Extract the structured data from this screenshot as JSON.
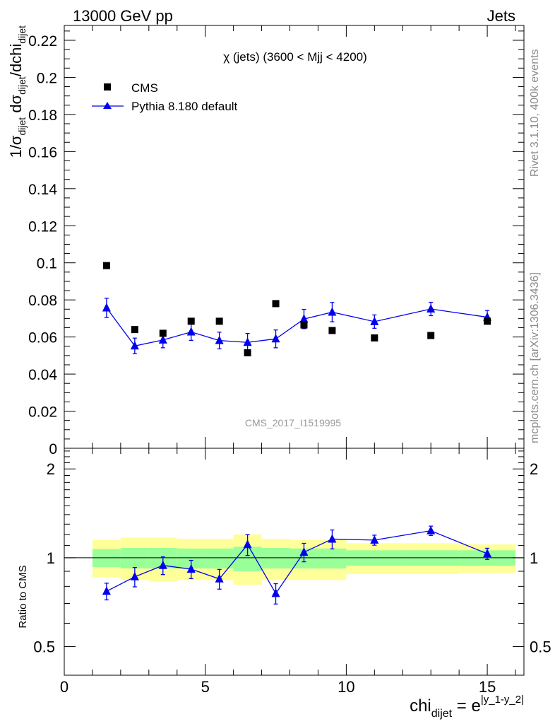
{
  "header": {
    "left": "13000 GeV pp",
    "right": "Jets"
  },
  "side_labels": {
    "rivet": "Rivet 3.1.10,  400k events",
    "mcplots": "mcplots.cern.ch [arXiv:1306.3436]"
  },
  "chart_data": [
    {
      "type": "scatter",
      "title": "χ (jets) (3600 < Mjj < 4200)",
      "watermark": "CMS_2017_I1519995",
      "ylabel": {
        "main": "1/σ",
        "sub1": "dijet",
        "mid": " dσ",
        "sub2": "dijet",
        "tail": "/dchi",
        "sub3": "dijet"
      },
      "xlim": [
        0,
        16.3
      ],
      "ylim": [
        0,
        0.228
      ],
      "yticks": [
        {
          "v": 0,
          "label": "0"
        },
        {
          "v": 0.02,
          "label": "0.02"
        },
        {
          "v": 0.04,
          "label": "0.04"
        },
        {
          "v": 0.06,
          "label": "0.06"
        },
        {
          "v": 0.08,
          "label": "0.08"
        },
        {
          "v": 0.1,
          "label": "0.1"
        },
        {
          "v": 0.12,
          "label": "0.12"
        },
        {
          "v": 0.14,
          "label": "0.14"
        },
        {
          "v": 0.16,
          "label": "0.16"
        },
        {
          "v": 0.18,
          "label": "0.18"
        },
        {
          "v": 0.2,
          "label": "0.2"
        },
        {
          "v": 0.22,
          "label": "0.22"
        }
      ],
      "legend": [
        {
          "name": "CMS",
          "marker": "square"
        },
        {
          "name": "Pythia 8.180 default",
          "marker": "triangle"
        }
      ],
      "series": [
        {
          "name": "CMS",
          "x": [
            1.5,
            2.5,
            3.5,
            4.5,
            5.5,
            6.5,
            7.5,
            8.5,
            9.5,
            11,
            13,
            15
          ],
          "y": [
            0.0985,
            0.064,
            0.062,
            0.0685,
            0.0685,
            0.0515,
            0.078,
            0.0665,
            0.0635,
            0.0595,
            0.0608,
            0.0685
          ]
        },
        {
          "name": "Pythia 8.180 default",
          "x": [
            1.5,
            2.5,
            3.5,
            4.5,
            5.5,
            6.5,
            7.5,
            8.5,
            9.5,
            11,
            13,
            15
          ],
          "y": [
            0.0757,
            0.0552,
            0.0584,
            0.0627,
            0.0581,
            0.0571,
            0.059,
            0.0697,
            0.0734,
            0.0683,
            0.0751,
            0.0707
          ],
          "err": [
            0.0052,
            0.0042,
            0.0042,
            0.0045,
            0.0045,
            0.0048,
            0.0048,
            0.0052,
            0.0052,
            0.0036,
            0.0036,
            0.0036
          ]
        }
      ]
    },
    {
      "type": "scatter",
      "ylabel": "Ratio to CMS",
      "xlabel": {
        "main": "chi",
        "sub": "dijet",
        "eq": " = e",
        "sup": "|y_1-y_2|"
      },
      "xlim": [
        0,
        16.3
      ],
      "ylim": [
        0.4,
        2.35
      ],
      "ylog": true,
      "yticks": [
        {
          "v": 0.5,
          "label": "0.5"
        },
        {
          "v": 1,
          "label": "1"
        },
        {
          "v": 2,
          "label": "2"
        }
      ],
      "xticks": [
        {
          "v": 0,
          "label": "0"
        },
        {
          "v": 5,
          "label": "5"
        },
        {
          "v": 10,
          "label": "10"
        },
        {
          "v": 15,
          "label": "15"
        }
      ],
      "bands": [
        {
          "x0": 1,
          "x1": 2,
          "in_lo": 0.93,
          "in_hi": 1.07,
          "out_lo": 0.86,
          "out_hi": 1.15
        },
        {
          "x0": 2,
          "x1": 3,
          "in_lo": 0.92,
          "in_hi": 1.08,
          "out_lo": 0.84,
          "out_hi": 1.17
        },
        {
          "x0": 3,
          "x1": 4,
          "in_lo": 0.92,
          "in_hi": 1.08,
          "out_lo": 0.83,
          "out_hi": 1.17
        },
        {
          "x0": 4,
          "x1": 5,
          "in_lo": 0.92,
          "in_hi": 1.075,
          "out_lo": 0.84,
          "out_hi": 1.16
        },
        {
          "x0": 5,
          "x1": 6,
          "in_lo": 0.92,
          "in_hi": 1.075,
          "out_lo": 0.84,
          "out_hi": 1.16
        },
        {
          "x0": 6,
          "x1": 7,
          "in_lo": 0.9,
          "in_hi": 1.09,
          "out_lo": 0.81,
          "out_hi": 1.2
        },
        {
          "x0": 7,
          "x1": 8,
          "in_lo": 0.92,
          "in_hi": 1.08,
          "out_lo": 0.84,
          "out_hi": 1.16
        },
        {
          "x0": 8,
          "x1": 10,
          "in_lo": 0.92,
          "in_hi": 1.075,
          "out_lo": 0.84,
          "out_hi": 1.15
        },
        {
          "x0": 10,
          "x1": 12,
          "in_lo": 0.94,
          "in_hi": 1.06,
          "out_lo": 0.88,
          "out_hi": 1.12
        },
        {
          "x0": 12,
          "x1": 14,
          "in_lo": 0.94,
          "in_hi": 1.06,
          "out_lo": 0.88,
          "out_hi": 1.12
        },
        {
          "x0": 14,
          "x1": 16,
          "in_lo": 0.94,
          "in_hi": 1.06,
          "out_lo": 0.89,
          "out_hi": 1.11
        }
      ],
      "series": [
        {
          "name": "Pythia 8.180 default",
          "x": [
            1.5,
            2.5,
            3.5,
            4.5,
            5.5,
            6.5,
            7.5,
            8.5,
            9.5,
            11,
            13,
            15
          ],
          "y": [
            0.77,
            0.862,
            0.942,
            0.915,
            0.848,
            1.108,
            0.757,
            1.044,
            1.157,
            1.148,
            1.235,
            1.032
          ],
          "err": [
            0.05,
            0.065,
            0.065,
            0.065,
            0.065,
            0.09,
            0.06,
            0.075,
            0.085,
            0.045,
            0.045,
            0.045
          ]
        }
      ]
    }
  ]
}
